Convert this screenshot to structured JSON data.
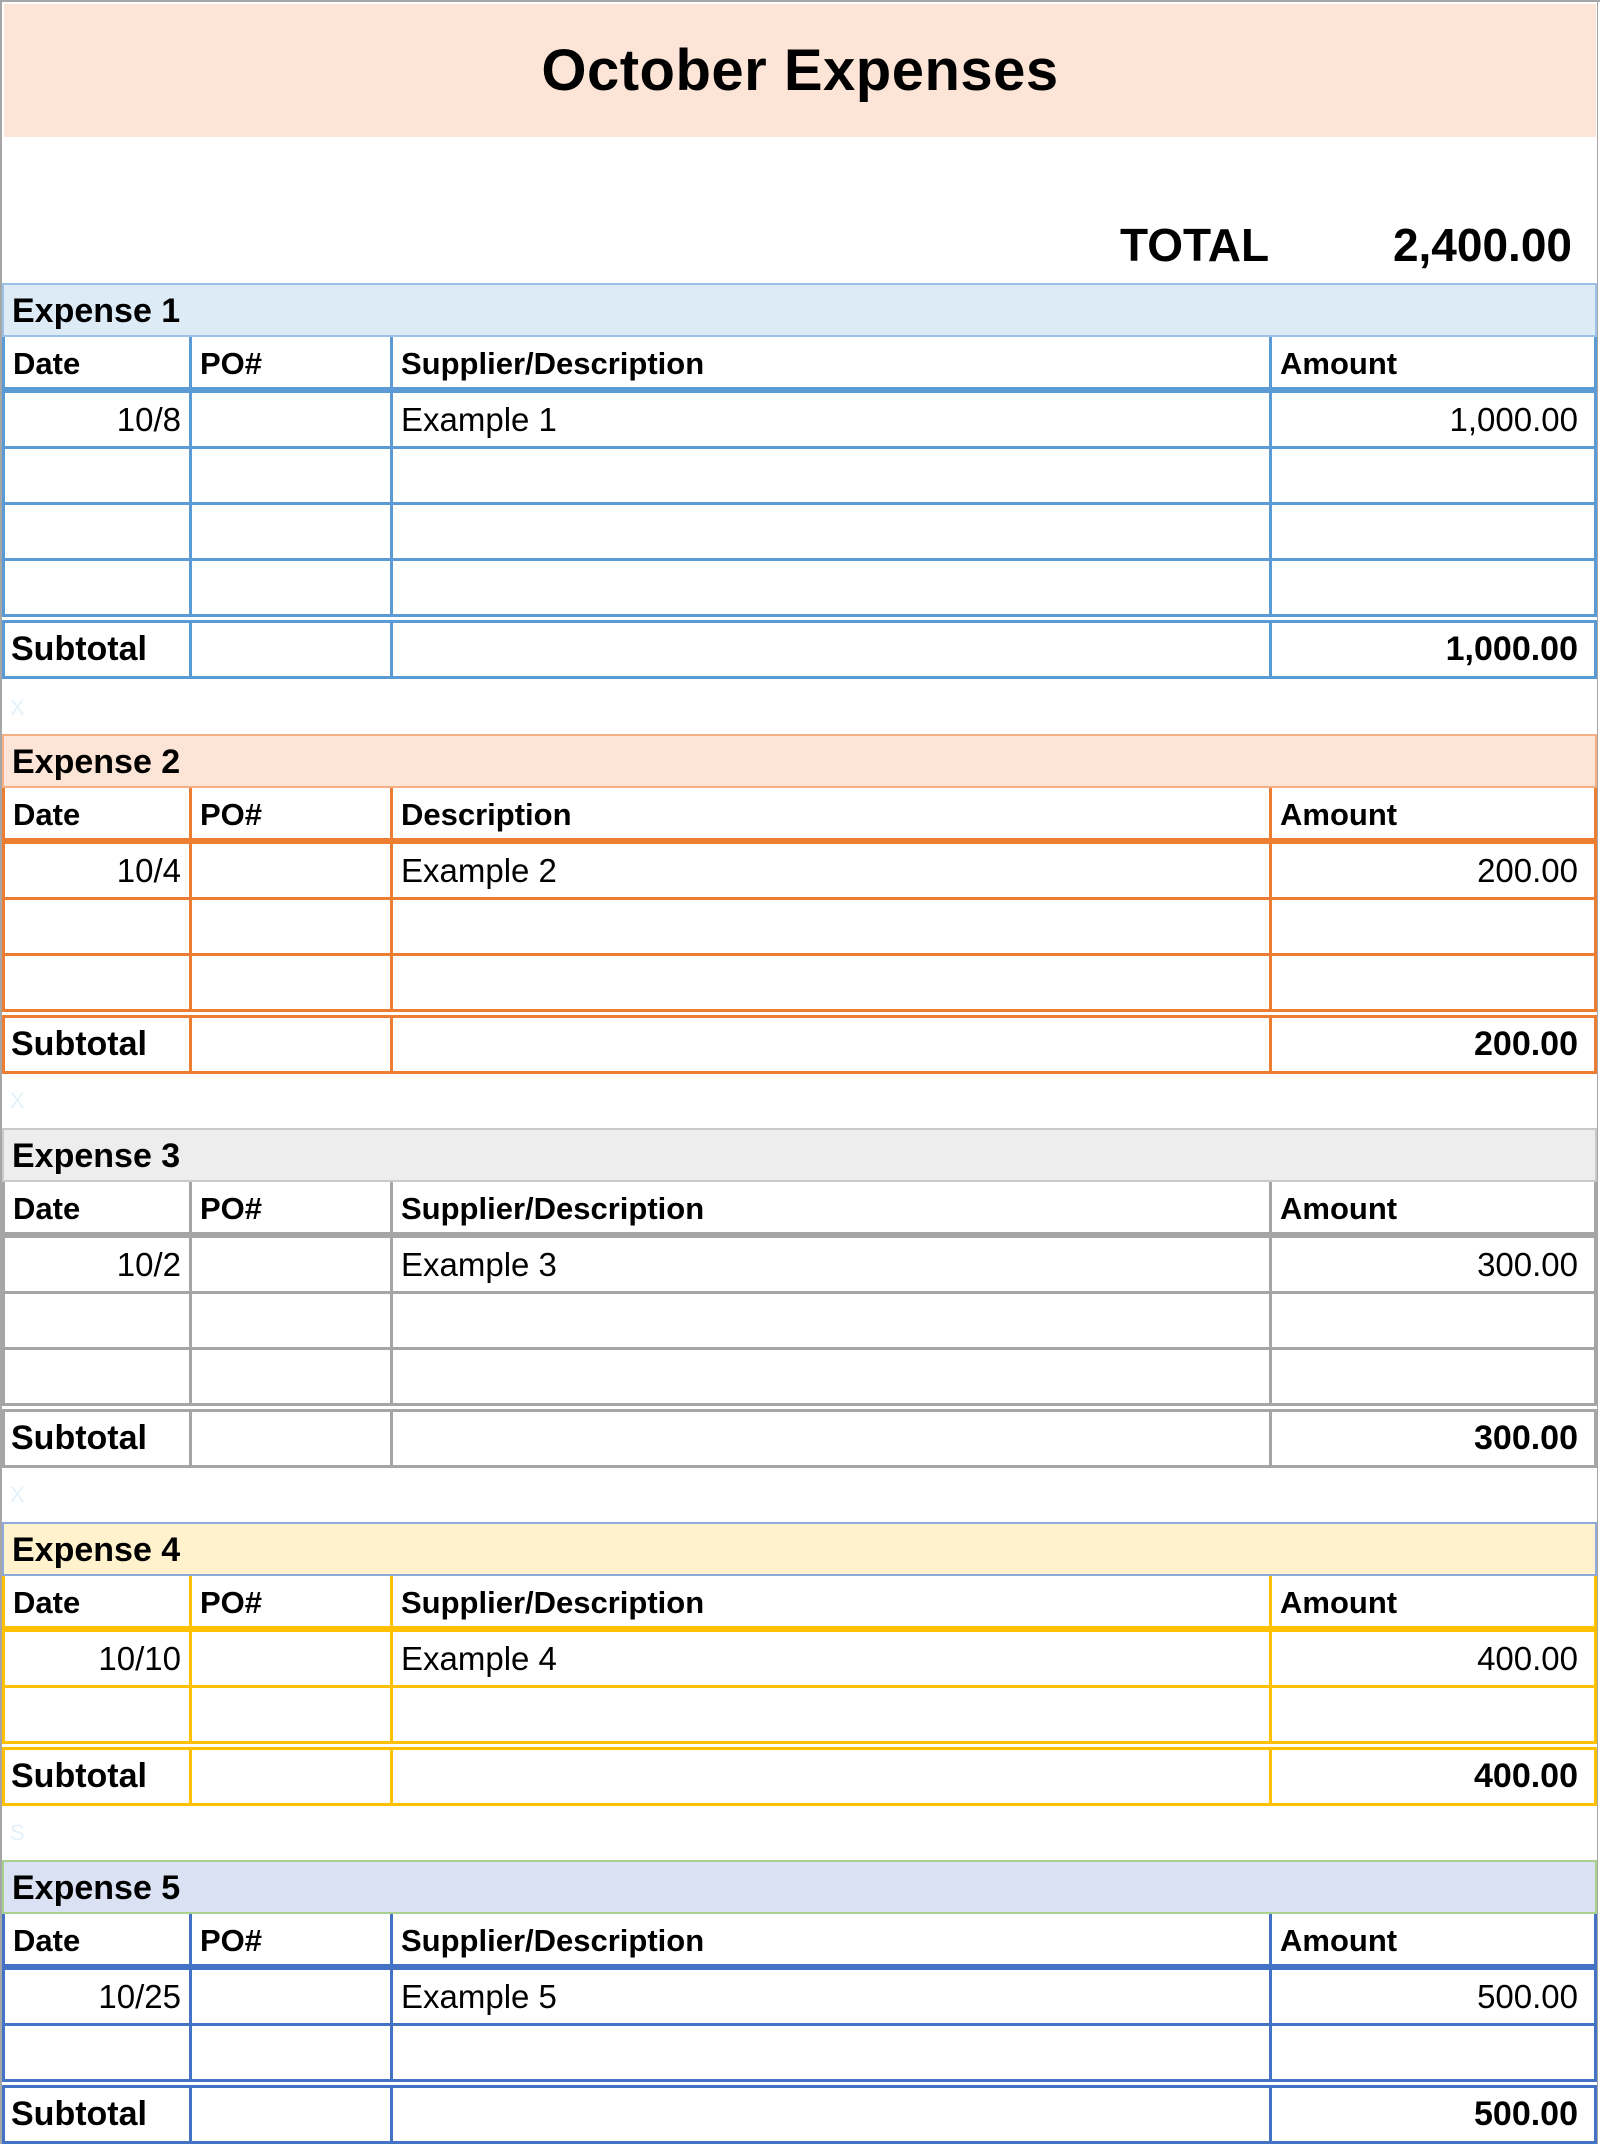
{
  "title": "October Expenses",
  "total": {
    "label": "TOTAL",
    "value": "2,400.00"
  },
  "gap_glyphs": [
    "X",
    "X",
    "X",
    "S"
  ],
  "sections": [
    {
      "name": "Expense 1",
      "colors": {
        "border": "#5B9BD5",
        "header_fill": "#DDEBF7",
        "header_border": "#9BC2E6"
      },
      "columns": [
        "Date",
        "PO#",
        "Supplier/Description",
        "Amount"
      ],
      "rows": [
        {
          "date": "10/8",
          "po": "",
          "desc": "Example 1",
          "amount": "1,000.00"
        },
        {
          "date": "",
          "po": "",
          "desc": "",
          "amount": ""
        },
        {
          "date": "",
          "po": "",
          "desc": "",
          "amount": ""
        },
        {
          "date": "",
          "po": "",
          "desc": "",
          "amount": ""
        }
      ],
      "subtotal_label": "Subtotal",
      "subtotal_value": "1,000.00"
    },
    {
      "name": "Expense 2",
      "colors": {
        "border": "#ED7D31",
        "header_fill": "#FCE4D6",
        "header_border": "#F4B084"
      },
      "columns": [
        "Date",
        "PO#",
        "Description",
        "Amount"
      ],
      "rows": [
        {
          "date": "10/4",
          "po": "",
          "desc": "Example 2",
          "amount": "200.00"
        },
        {
          "date": "",
          "po": "",
          "desc": "",
          "amount": ""
        },
        {
          "date": "",
          "po": "",
          "desc": "",
          "amount": ""
        }
      ],
      "subtotal_label": "Subtotal",
      "subtotal_value": "200.00"
    },
    {
      "name": "Expense 3",
      "colors": {
        "border": "#A5A5A5",
        "header_fill": "#EDEDED",
        "header_border": "#C9C9C9"
      },
      "columns": [
        "Date",
        "PO#",
        "Supplier/Description",
        "Amount"
      ],
      "rows": [
        {
          "date": "10/2",
          "po": "",
          "desc": "Example 3",
          "amount": "300.00"
        },
        {
          "date": "",
          "po": "",
          "desc": "",
          "amount": ""
        },
        {
          "date": "",
          "po": "",
          "desc": "",
          "amount": ""
        }
      ],
      "subtotal_label": "Subtotal",
      "subtotal_value": "300.00"
    },
    {
      "name": "Expense 4",
      "colors": {
        "border": "#FFC000",
        "header_fill": "#FFF2CC",
        "header_border": "#8EA9DB"
      },
      "columns": [
        "Date",
        "PO#",
        "Supplier/Description",
        "Amount"
      ],
      "rows": [
        {
          "date": "10/10",
          "po": "",
          "desc": "Example 4",
          "amount": "400.00"
        },
        {
          "date": "",
          "po": "",
          "desc": "",
          "amount": ""
        }
      ],
      "subtotal_label": "Subtotal",
      "subtotal_value": "400.00"
    },
    {
      "name": "Expense 5",
      "colors": {
        "border": "#4472C4",
        "header_fill": "#D9E1F2",
        "header_border": "#A9D08E"
      },
      "columns": [
        "Date",
        "PO#",
        "Supplier/Description",
        "Amount"
      ],
      "rows": [
        {
          "date": "10/25",
          "po": "",
          "desc": "Example 5",
          "amount": "500.00"
        },
        {
          "date": "",
          "po": "",
          "desc": "",
          "amount": ""
        }
      ],
      "subtotal_label": "Subtotal",
      "subtotal_value": "500.00"
    }
  ]
}
